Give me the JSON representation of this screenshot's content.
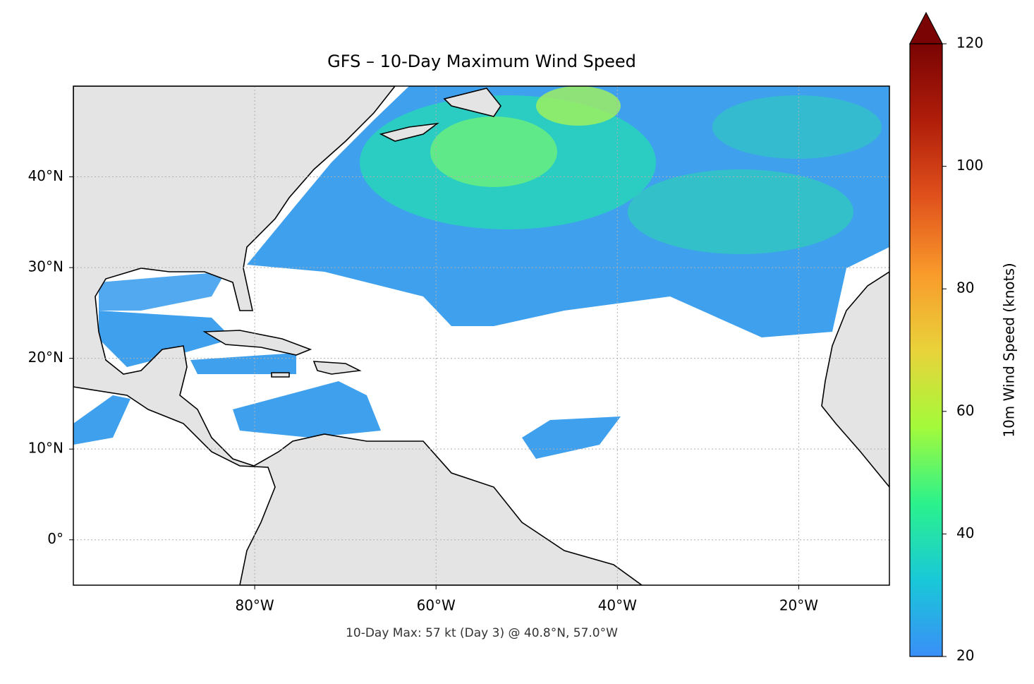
{
  "chart_data": {
    "type": "map",
    "title": "GFS – 10-Day Maximum Wind Speed",
    "annotation": "10-Day Max: 57 kt (Day 3) @ 40.8°N, 57.0°W",
    "xlim": [
      -100,
      -10
    ],
    "ylim": [
      -5,
      50
    ],
    "xticks": [
      {
        "value": -80,
        "label": "80°W"
      },
      {
        "value": -60,
        "label": "60°W"
      },
      {
        "value": -40,
        "label": "40°W"
      },
      {
        "value": -20,
        "label": "20°W"
      }
    ],
    "yticks": [
      {
        "value": 0,
        "label": "0°"
      },
      {
        "value": 10,
        "label": "10°N"
      },
      {
        "value": 20,
        "label": "20°N"
      },
      {
        "value": 30,
        "label": "30°N"
      },
      {
        "value": 40,
        "label": "40°N"
      }
    ],
    "grid": true,
    "colorbar": {
      "label": "10m Wind Speed (knots)",
      "lim": [
        20,
        120
      ],
      "ticks": [
        20,
        40,
        60,
        80,
        100,
        120
      ],
      "extend": "max",
      "colors": [
        "#3a8ff7",
        "#19c8d8",
        "#2bf28c",
        "#a4fa3a",
        "#e9d23a",
        "#f99a2b",
        "#e0511c",
        "#b01d0a",
        "#7a0403"
      ]
    }
  }
}
